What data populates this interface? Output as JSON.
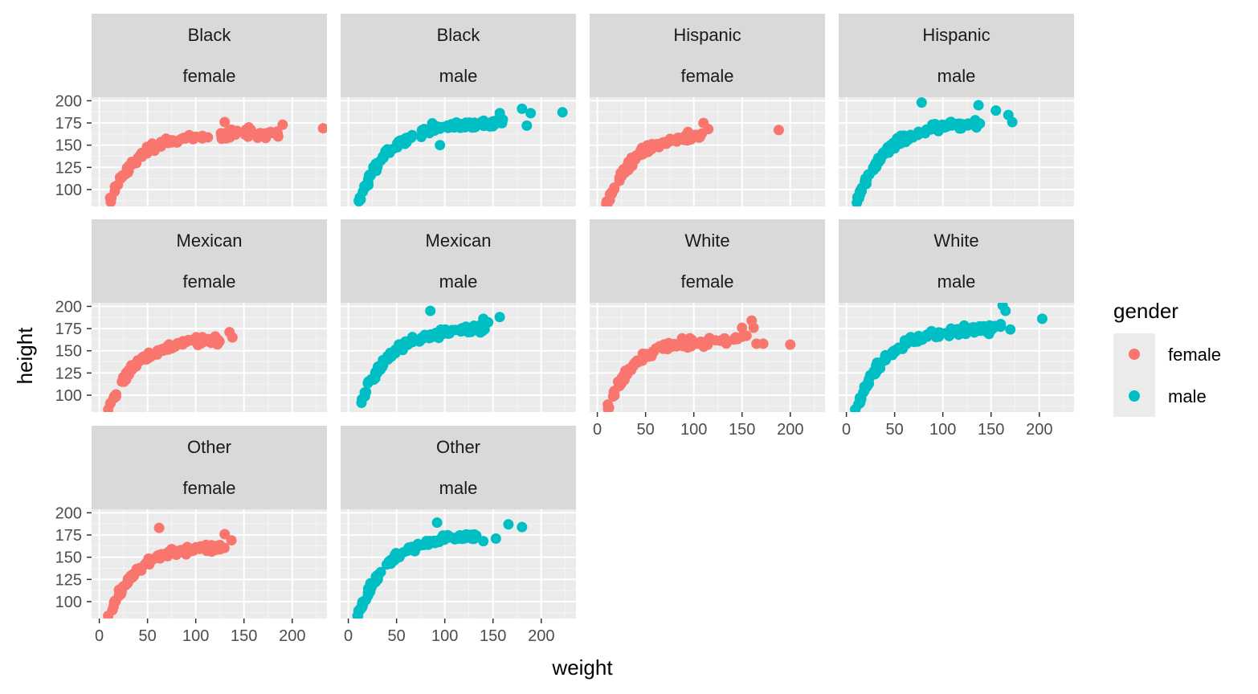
{
  "chart_data": {
    "type": "scatter",
    "facet_by": [
      "race",
      "gender"
    ],
    "xlabel": "weight",
    "ylabel": "height",
    "xlim": [
      -8,
      236
    ],
    "ylim": [
      81,
      204
    ],
    "xticks": [
      0,
      50,
      100,
      150,
      200
    ],
    "yticks": [
      100,
      125,
      150,
      175,
      200
    ],
    "legend": {
      "title": "gender",
      "position": "right",
      "items": [
        {
          "label": "female",
          "color": "#F8766D"
        },
        {
          "label": "male",
          "color": "#00BFC4"
        }
      ]
    },
    "panels": [
      {
        "race": "Black",
        "gender": "female",
        "extremes": [
          [
            232,
            169
          ],
          [
            190,
            173
          ],
          [
            155,
            170
          ],
          [
            130,
            176
          ]
        ],
        "wmax": 190
      },
      {
        "race": "Black",
        "gender": "male",
        "extremes": [
          [
            222,
            187
          ],
          [
            185,
            172
          ],
          [
            189,
            186
          ],
          [
            180,
            191
          ],
          [
            157,
            186
          ],
          [
            95,
            150
          ]
        ],
        "wmax": 165
      },
      {
        "race": "Hispanic",
        "gender": "female",
        "extremes": [
          [
            188,
            167
          ],
          [
            115,
            168
          ],
          [
            110,
            175
          ]
        ],
        "wmax": 110
      },
      {
        "race": "Hispanic",
        "gender": "male",
        "extremes": [
          [
            168,
            184
          ],
          [
            172,
            176
          ],
          [
            155,
            189
          ],
          [
            137,
            195
          ],
          [
            78,
            198
          ]
        ],
        "wmax": 140
      },
      {
        "race": "Mexican",
        "gender": "female",
        "extremes": [
          [
            138,
            165
          ],
          [
            135,
            171
          ],
          [
            120,
            160
          ]
        ],
        "wmax": 125
      },
      {
        "race": "Mexican",
        "gender": "male",
        "extremes": [
          [
            157,
            188
          ],
          [
            145,
            182
          ],
          [
            140,
            186
          ],
          [
            85,
            195
          ]
        ],
        "wmax": 145
      },
      {
        "race": "White",
        "gender": "female",
        "extremes": [
          [
            200,
            157
          ],
          [
            172,
            158
          ],
          [
            165,
            158
          ],
          [
            162,
            176
          ],
          [
            160,
            184
          ],
          [
            150,
            176
          ]
        ],
        "wmax": 155
      },
      {
        "race": "White",
        "gender": "male",
        "extremes": [
          [
            203,
            186
          ],
          [
            170,
            174
          ],
          [
            162,
            201
          ],
          [
            165,
            195
          ],
          [
            160,
            180
          ]
        ],
        "wmax": 160
      },
      {
        "race": "Other",
        "gender": "female",
        "extremes": [
          [
            137,
            169
          ],
          [
            130,
            176
          ],
          [
            62,
            183
          ]
        ],
        "wmax": 130
      },
      {
        "race": "Other",
        "gender": "male",
        "extremes": [
          [
            180,
            184
          ],
          [
            166,
            187
          ],
          [
            153,
            171
          ],
          [
            140,
            168
          ],
          [
            92,
            189
          ]
        ],
        "wmax": 135
      }
    ]
  }
}
